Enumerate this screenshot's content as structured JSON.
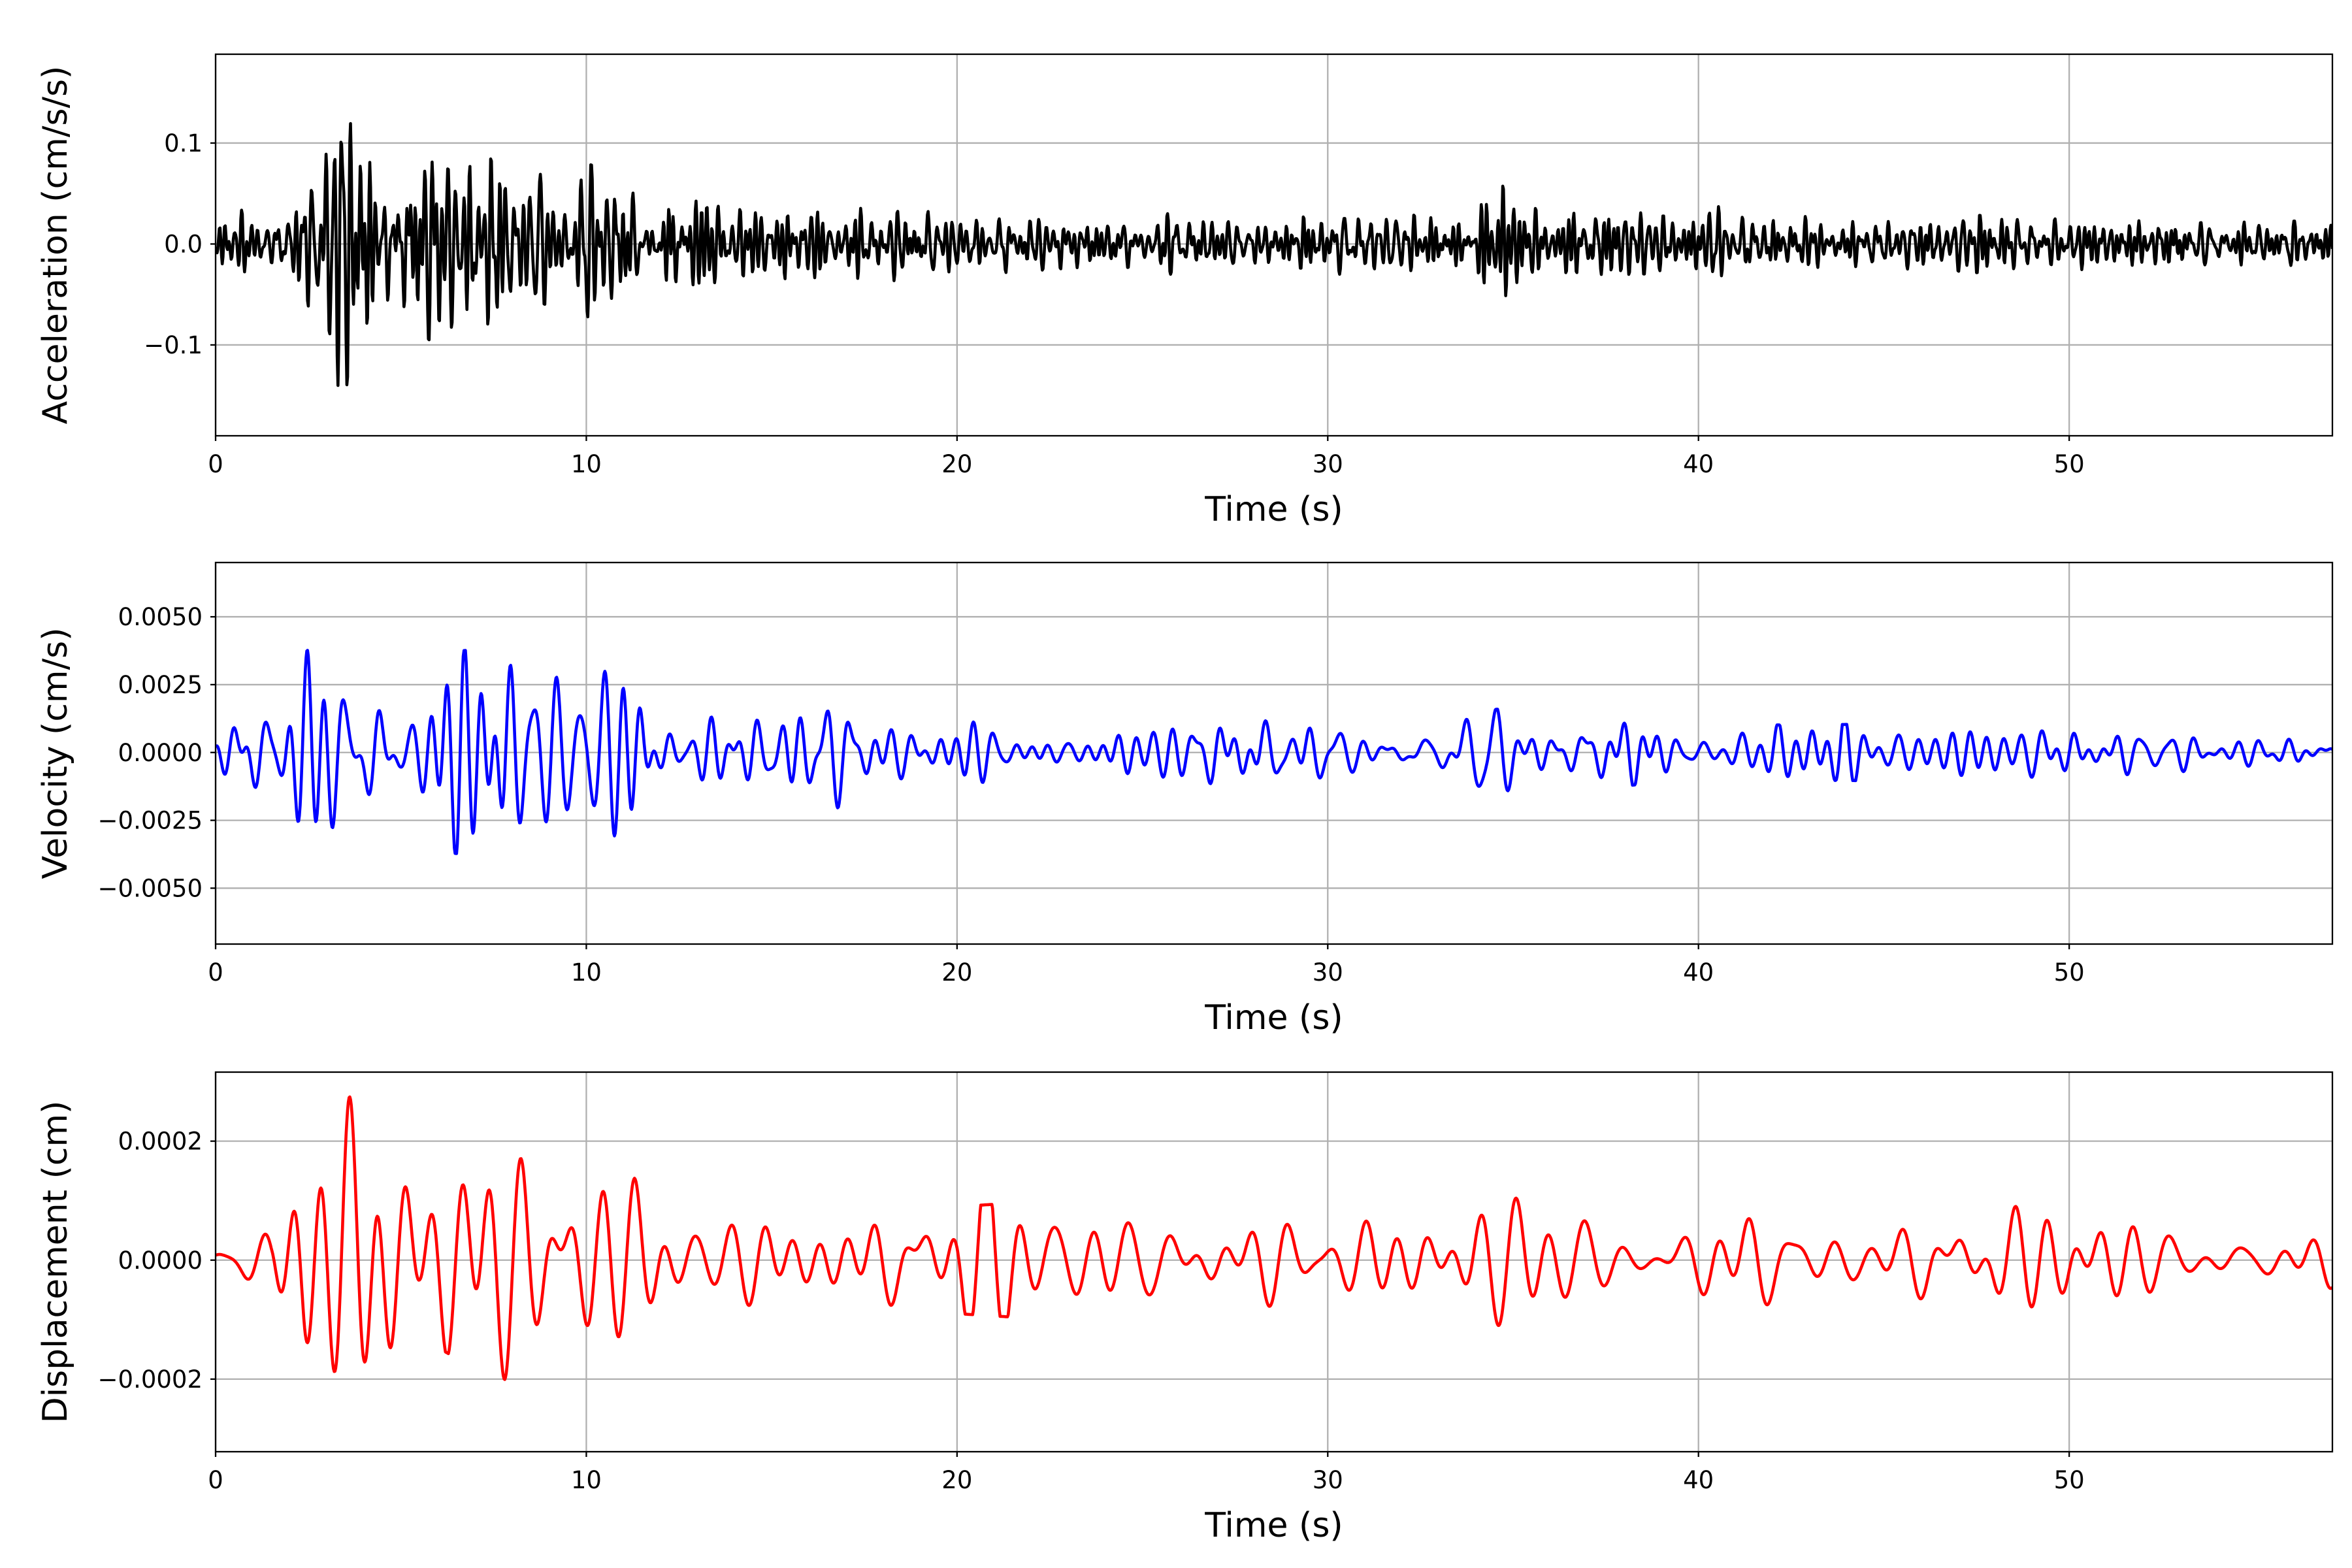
{
  "chart_data": [
    {
      "type": "line",
      "name": "acceleration",
      "xlabel": "Time (s)",
      "ylabel": "Acceleration (cm/s/s)",
      "xlim": [
        0,
        57.1
      ],
      "ylim": [
        -0.19,
        0.188
      ],
      "xticks": [
        0,
        10,
        20,
        30,
        40,
        50
      ],
      "xtick_labels": [
        "0",
        "10",
        "20",
        "30",
        "40",
        "50"
      ],
      "yticks": [
        -0.1,
        0.0,
        0.1
      ],
      "ytick_labels": [
        "−0.1",
        "0.0",
        "0.1"
      ],
      "grid": true,
      "color": "#000000",
      "sample_dt": 0.02,
      "band_hz": [
        2.0,
        9.0
      ],
      "envelope": [
        [
          0,
          0.03
        ],
        [
          2,
          0.04
        ],
        [
          2.5,
          0.1
        ],
        [
          3.5,
          0.17
        ],
        [
          4.3,
          0.16
        ],
        [
          5,
          0.1
        ],
        [
          7,
          0.09
        ],
        [
          10,
          0.08
        ],
        [
          11.5,
          0.06
        ],
        [
          14,
          0.04
        ],
        [
          17,
          0.045
        ],
        [
          20,
          0.03
        ],
        [
          34,
          0.03
        ],
        [
          34.7,
          0.075
        ],
        [
          35.5,
          0.035
        ],
        [
          38,
          0.04
        ],
        [
          41,
          0.04
        ],
        [
          45,
          0.03
        ],
        [
          57.1,
          0.022
        ]
      ]
    },
    {
      "type": "line",
      "name": "velocity",
      "xlabel": "Time (s)",
      "ylabel": "Velocity (cm/s)",
      "xlim": [
        0,
        57.1
      ],
      "ylim": [
        -0.00706,
        0.007
      ],
      "xticks": [
        0,
        10,
        20,
        30,
        40,
        50
      ],
      "xtick_labels": [
        "0",
        "10",
        "20",
        "30",
        "40",
        "50"
      ],
      "yticks": [
        -0.005,
        -0.0025,
        0.0,
        0.0025,
        0.005
      ],
      "ytick_labels": [
        "−0.0050",
        "−0.0025",
        "0.0000",
        "0.0025",
        "0.0050"
      ],
      "grid": true,
      "color": "#0000ff",
      "sample_dt": 0.02,
      "band_hz": [
        0.9,
        2.6
      ],
      "envelope": [
        [
          0,
          0.0008
        ],
        [
          1.5,
          0.0015
        ],
        [
          2.5,
          0.0042
        ],
        [
          3.6,
          0.0063
        ],
        [
          4.3,
          0.006
        ],
        [
          5,
          0.0035
        ],
        [
          7,
          0.0038
        ],
        [
          7.8,
          0.0046
        ],
        [
          9,
          0.003
        ],
        [
          11.2,
          0.0036
        ],
        [
          12,
          0.0018
        ],
        [
          17,
          0.0022
        ],
        [
          20,
          0.0012
        ],
        [
          34.8,
          0.0016
        ],
        [
          40,
          0.001
        ],
        [
          52,
          0.0011
        ],
        [
          57.1,
          0.0006
        ]
      ]
    },
    {
      "type": "line",
      "name": "displacement",
      "xlabel": "Time (s)",
      "ylabel": "Displacement (cm)",
      "xlim": [
        0,
        57.1
      ],
      "ylim": [
        -0.000322,
        0.000316
      ],
      "xticks": [
        0,
        10,
        20,
        30,
        40,
        50
      ],
      "xtick_labels": [
        "0",
        "10",
        "20",
        "30",
        "40",
        "50"
      ],
      "yticks": [
        -0.0002,
        0.0,
        0.0002
      ],
      "ytick_labels": [
        "−0.0002",
        "0.0000",
        "0.0002"
      ],
      "grid": true,
      "color": "#ff0000",
      "sample_dt": 0.02,
      "band_hz": [
        0.45,
        1.4
      ],
      "envelope": [
        [
          0,
          4e-05
        ],
        [
          1.5,
          6e-05
        ],
        [
          2.4,
          0.00026
        ],
        [
          3.6,
          0.00029
        ],
        [
          4.3,
          0.00027
        ],
        [
          5.5,
          0.00013
        ],
        [
          7.8,
          0.00021
        ],
        [
          9.2,
          0.0002
        ],
        [
          11.3,
          0.00023
        ],
        [
          13,
          0.00012
        ],
        [
          20,
          9e-05
        ],
        [
          33,
          0.00014
        ],
        [
          37.8,
          0.00013
        ],
        [
          42.3,
          0.00013
        ],
        [
          47,
          0.0001
        ],
        [
          57.1,
          5e-05
        ]
      ]
    }
  ]
}
